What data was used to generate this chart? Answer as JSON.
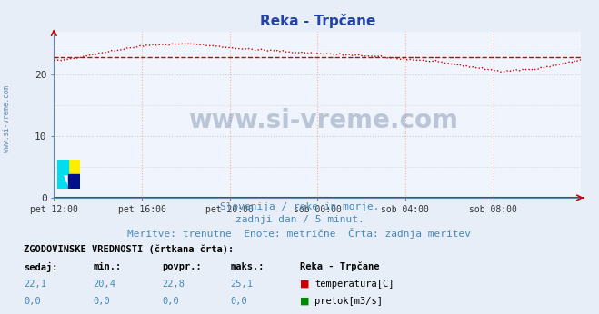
{
  "title": "Reka - Trpčane",
  "title_color": "#2244aa",
  "bg_color": "#e8eef8",
  "plot_bg_color": "#f0f4fc",
  "grid_color_red": "#ffaaaa",
  "grid_color_gray": "#cccccc",
  "xlabel_ticks": [
    "pet 12:00",
    "pet 16:00",
    "pet 20:00",
    "sob 00:00",
    "sob 04:00",
    "sob 08:00"
  ],
  "ylabel_ticks": [
    0,
    10,
    20
  ],
  "ylim": [
    0,
    27
  ],
  "xlim": [
    0,
    288
  ],
  "watermark": "www.si-vreme.com",
  "watermark_color": "#1a3a6a",
  "subtitle1": "Slovenija / reke in morje.",
  "subtitle2": "zadnji dan / 5 minut.",
  "subtitle3": "Meritve: trenutne  Enote: metrične  Črta: zadnja meritev",
  "subtitle_color": "#4488bb",
  "table_header": "ZGODOVINSKE VREDNOSTI (črtkana črta):",
  "table_cols": [
    "sedaj:",
    "min.:",
    "povpr.:",
    "maks.:"
  ],
  "table_row1_vals": [
    "22,1",
    "20,4",
    "22,8",
    "25,1"
  ],
  "table_row2_vals": [
    "0,0",
    "0,0",
    "0,0",
    "0,0"
  ],
  "table_station": "Reka - Trpčane",
  "table_legend1": "temperatura[C]",
  "table_legend2": "pretok[m3/s]",
  "legend1_color": "#cc0000",
  "legend2_color": "#008800",
  "temp_line_color": "#cc0000",
  "flow_line_color": "#008800",
  "avg_line_value": 22.8,
  "left_label": "www.si-vreme.com",
  "left_label_color": "#6688aa"
}
